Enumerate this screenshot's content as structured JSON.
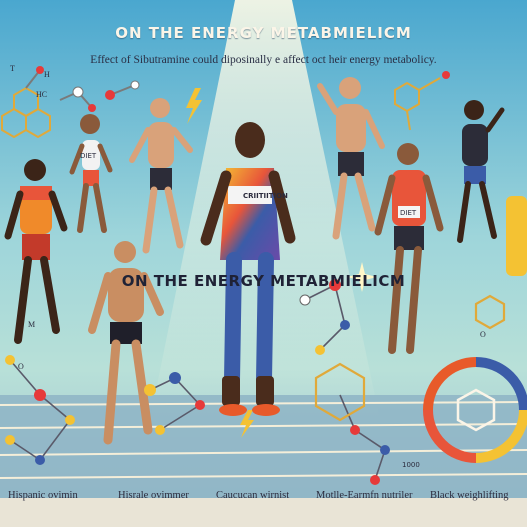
{
  "header": {
    "title": "ON THE ENERGY METABMIELICM",
    "subtitle": "Effect of Sibutramine could diposinally e affect oct heir energy metabolicy."
  },
  "overlay": {
    "headline": "ON THE ENERGY METABMIELICM",
    "badge_text": "CRIITIITION"
  },
  "molecule_labels": {
    "h": "H",
    "hc": "HC",
    "t": "T",
    "o": "O",
    "ring_o": "O",
    "mark": "M"
  },
  "bottom_labels": [
    "Hispanic ovimin",
    "Hisrale ovimmer",
    "Caucucan wirnist",
    "Motlle-Earmfn nutriler",
    "Black weighlifting"
  ],
  "bib_text": "DIET",
  "corner_note": "1000",
  "colors": {
    "sky_top": "#5fb4d6",
    "sky_mid": "#a6d9de",
    "track": "#8ab0c3",
    "lane_line": "#f4eed9",
    "accent_orange": "#e85a2a",
    "accent_yellow": "#f4c233",
    "accent_blue": "#3b5ca8"
  }
}
